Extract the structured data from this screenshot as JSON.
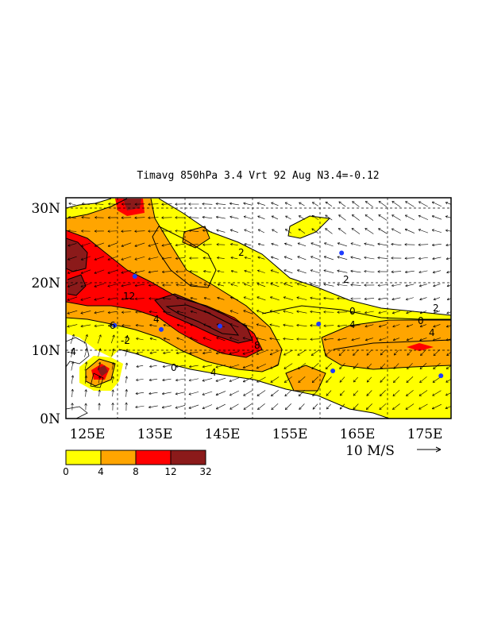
{
  "map": {
    "title": "Timavg 850hPa 3.4 Vrt 92 Aug N3.4=-0.12",
    "lat_labels": [
      "0N",
      "10N",
      "20N",
      "30N"
    ],
    "lon_labels": [
      "125E",
      "135E",
      "145E",
      "155E",
      "165E",
      "175E"
    ],
    "lat_range": [
      0,
      32
    ],
    "lon_range": [
      121,
      178
    ],
    "vector_reference": {
      "label": "10 M/S",
      "speed": 10
    },
    "colorbar": {
      "levels": [
        "0",
        "4",
        "8",
        "12",
        "32"
      ],
      "colors": [
        "#ffff00",
        "#ffa500",
        "#ff0000",
        "#8b1a1a"
      ]
    },
    "contour_labels": [
      "0",
      "2",
      "4",
      "6",
      "8",
      "10",
      "12",
      "-2",
      "-4"
    ],
    "markers": {
      "color": "#1e3cff"
    }
  }
}
